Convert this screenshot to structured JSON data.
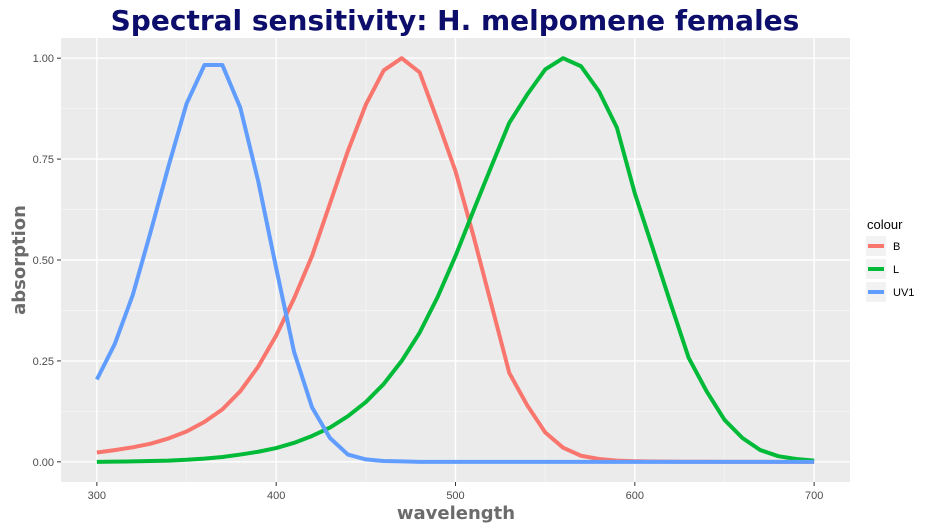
{
  "colors": {
    "title": "#0d0d6b",
    "panel_background": "#ebebeb",
    "grid_major": "#ffffff",
    "grid_minor": "#f5f5f5",
    "axis_title": "#6b6b6b",
    "tick_label": "#4d4d4d",
    "tick_mark": "#333333"
  },
  "chart_data": {
    "type": "line",
    "title": "Spectral sensitivity: H. melpomene females",
    "xlabel": "wavelength",
    "ylabel": "absorption",
    "xlim": [
      280,
      720
    ],
    "ylim": [
      -0.05,
      1.05
    ],
    "xticks": [
      300,
      400,
      500,
      600,
      700
    ],
    "yticks": [
      0.0,
      0.25,
      0.5,
      0.75,
      1.0
    ],
    "xtick_labels": [
      "300",
      "400",
      "500",
      "600",
      "700"
    ],
    "ytick_labels": [
      "0.00",
      "0.25",
      "0.50",
      "0.75",
      "1.00"
    ],
    "grid": true,
    "legend": {
      "title": "colour",
      "position": "right"
    },
    "x": [
      300,
      310,
      320,
      330,
      340,
      350,
      360,
      370,
      380,
      390,
      400,
      410,
      420,
      430,
      440,
      450,
      460,
      470,
      480,
      490,
      500,
      510,
      520,
      530,
      540,
      550,
      560,
      570,
      580,
      590,
      600,
      610,
      620,
      630,
      640,
      650,
      660,
      670,
      680,
      690,
      700
    ],
    "series": [
      {
        "name": "B",
        "color": "#f8766d",
        "values": [
          0.023,
          0.029,
          0.036,
          0.045,
          0.058,
          0.075,
          0.099,
          0.13,
          0.175,
          0.236,
          0.313,
          0.405,
          0.51,
          0.64,
          0.77,
          0.885,
          0.97,
          1.0,
          0.965,
          0.845,
          0.72,
          0.56,
          0.39,
          0.22,
          0.14,
          0.073,
          0.035,
          0.015,
          0.007,
          0.003,
          0.0015,
          0.0008,
          0.0004,
          0.0002,
          0.0001,
          0.0,
          0.0,
          0.0,
          0.0,
          0.0,
          0.0
        ]
      },
      {
        "name": "L",
        "color": "#00ba38",
        "values": [
          0.0,
          0.0005,
          0.001,
          0.002,
          0.003,
          0.005,
          0.008,
          0.012,
          0.018,
          0.025,
          0.034,
          0.047,
          0.064,
          0.085,
          0.113,
          0.148,
          0.193,
          0.25,
          0.32,
          0.408,
          0.51,
          0.622,
          0.732,
          0.84,
          0.91,
          0.972,
          1.0,
          0.98,
          0.918,
          0.828,
          0.665,
          0.529,
          0.392,
          0.258,
          0.175,
          0.104,
          0.059,
          0.029,
          0.014,
          0.007,
          0.003
        ]
      },
      {
        "name": "UV1",
        "color": "#619cff",
        "values": [
          0.204,
          0.292,
          0.413,
          0.57,
          0.733,
          0.887,
          0.983,
          0.983,
          0.877,
          0.695,
          0.48,
          0.272,
          0.135,
          0.059,
          0.018,
          0.006,
          0.002,
          0.001,
          0.0,
          0.0,
          0.0,
          0.0,
          0.0,
          0.0,
          0.0,
          0.0,
          0.0,
          0.0,
          0.0,
          0.0,
          0.0,
          0.0,
          0.0,
          0.0,
          0.0,
          0.0,
          0.0,
          0.0,
          0.0,
          0.0,
          0.0
        ]
      }
    ]
  }
}
